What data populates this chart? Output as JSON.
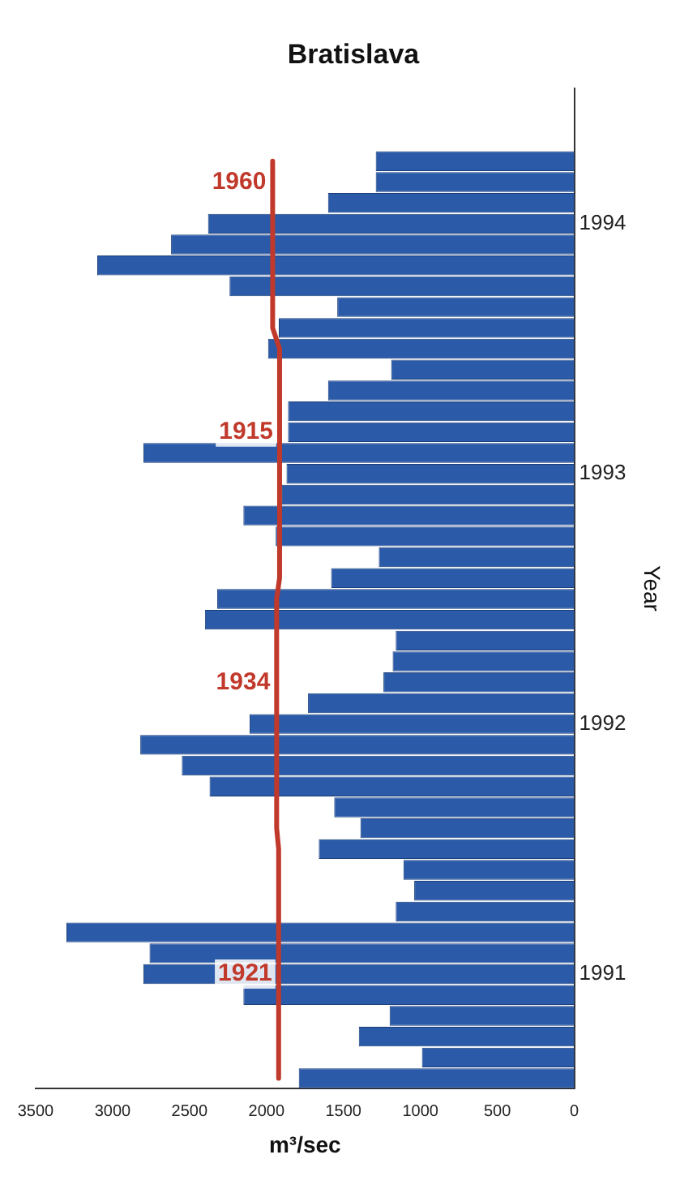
{
  "chart_data": {
    "type": "bar",
    "orientation": "horizontal",
    "title": "Bratislava",
    "xlabel": "m³/sec",
    "ylabel": "Year",
    "categories": [
      null,
      null,
      null,
      null,
      null,
      null,
      "1994",
      null,
      null,
      null,
      null,
      null,
      null,
      null,
      null,
      null,
      null,
      null,
      "1993",
      null,
      null,
      null,
      null,
      null,
      null,
      null,
      null,
      null,
      null,
      null,
      "1992",
      null,
      null,
      null,
      null,
      null,
      null,
      null,
      null,
      null,
      null,
      null,
      "1991",
      null,
      null,
      null,
      null,
      null
    ],
    "series": [
      {
        "color": "#2a5aa8",
        "values": [
          null,
          null,
          null,
          1290,
          1290,
          1600,
          2380,
          2620,
          3100,
          2240,
          1540,
          1920,
          1990,
          1190,
          1600,
          1860,
          1860,
          2800,
          1870,
          1900,
          2150,
          1940,
          1270,
          1580,
          2320,
          2400,
          1160,
          1180,
          1240,
          1730,
          2110,
          2820,
          2550,
          2370,
          1560,
          1390,
          1660,
          1110,
          1040,
          1160,
          3300,
          2760,
          2800,
          2150,
          1200,
          1400,
          990,
          1790
        ]
      },
      {
        "type": "line",
        "color": "#c0392b",
        "marker": "none",
        "values": [
          null,
          null,
          null,
          1960,
          1960,
          1960,
          1960,
          1960,
          1960,
          1960,
          1960,
          1960,
          1915,
          1915,
          1915,
          1915,
          1915,
          1915,
          1915,
          1915,
          1915,
          1915,
          1915,
          1915,
          1934,
          1934,
          1934,
          1934,
          1934,
          1934,
          1934,
          1934,
          1934,
          1934,
          1934,
          1934,
          1921,
          1921,
          1921,
          1921,
          1921,
          1921,
          1921,
          1921,
          1921,
          1921,
          1921,
          1921
        ],
        "value_labels": [
          null,
          null,
          null,
          null,
          "1960",
          null,
          null,
          null,
          null,
          null,
          null,
          null,
          null,
          null,
          null,
          null,
          "1915",
          null,
          null,
          null,
          null,
          null,
          null,
          null,
          null,
          null,
          null,
          null,
          "1934",
          null,
          null,
          null,
          null,
          null,
          null,
          null,
          null,
          null,
          null,
          null,
          null,
          null,
          "1921",
          null,
          null,
          null,
          null,
          null
        ]
      }
    ],
    "xlim": [
      3500,
      0
    ],
    "xticks": [
      0,
      500,
      1000,
      1500,
      2000,
      2500,
      3000,
      3500
    ],
    "grid": false,
    "legend": false
  }
}
